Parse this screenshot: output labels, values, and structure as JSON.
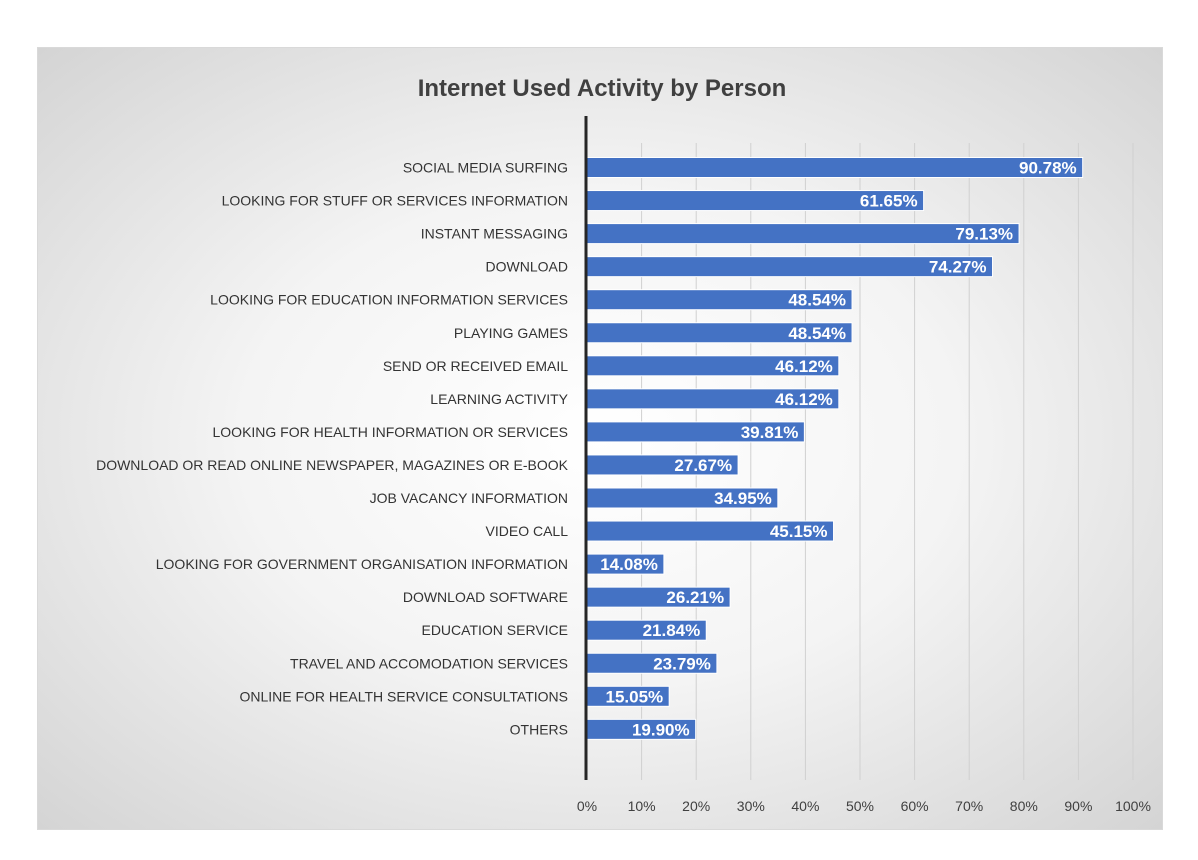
{
  "chart_data": {
    "type": "bar",
    "orientation": "horizontal",
    "title": "Internet Used Activity by Person",
    "xlabel": "",
    "ylabel": "",
    "xlim": [
      0,
      100
    ],
    "x_ticks": [
      "0%",
      "10%",
      "20%",
      "30%",
      "40%",
      "50%",
      "60%",
      "70%",
      "80%",
      "90%",
      "100%"
    ],
    "grid": "vertical",
    "legend": "none",
    "bar_color": "#4472C4",
    "categories": [
      "SOCIAL MEDIA SURFING",
      "LOOKING FOR STUFF OR SERVICES INFORMATION",
      "INSTANT MESSAGING",
      "DOWNLOAD",
      "LOOKING FOR EDUCATION INFORMATION SERVICES",
      "PLAYING GAMES",
      "SEND OR RECEIVED EMAIL",
      "LEARNING ACTIVITY",
      "LOOKING FOR HEALTH INFORMATION OR SERVICES",
      "DOWNLOAD OR READ ONLINE NEWSPAPER, MAGAZINES OR E-BOOK",
      "JOB VACANCY INFORMATION",
      "VIDEO CALL",
      "LOOKING FOR GOVERNMENT ORGANISATION INFORMATION",
      "DOWNLOAD SOFTWARE",
      "EDUCATION SERVICE",
      "TRAVEL AND ACCOMODATION SERVICES",
      "ONLINE FOR HEALTH SERVICE CONSULTATIONS",
      "OTHERS"
    ],
    "values": [
      90.78,
      61.65,
      79.13,
      74.27,
      48.54,
      48.54,
      46.12,
      46.12,
      39.81,
      27.67,
      34.95,
      45.15,
      14.08,
      26.21,
      21.84,
      23.79,
      15.05,
      19.9
    ],
    "data_labels": [
      "90.78%",
      "61.65%",
      "79.13%",
      "74.27%",
      "48.54%",
      "48.54%",
      "46.12%",
      "46.12%",
      "39.81%",
      "27.67%",
      "34.95%",
      "45.15%",
      "14.08%",
      "26.21%",
      "21.84%",
      "23.79%",
      "15.05%",
      "19.90%"
    ]
  }
}
